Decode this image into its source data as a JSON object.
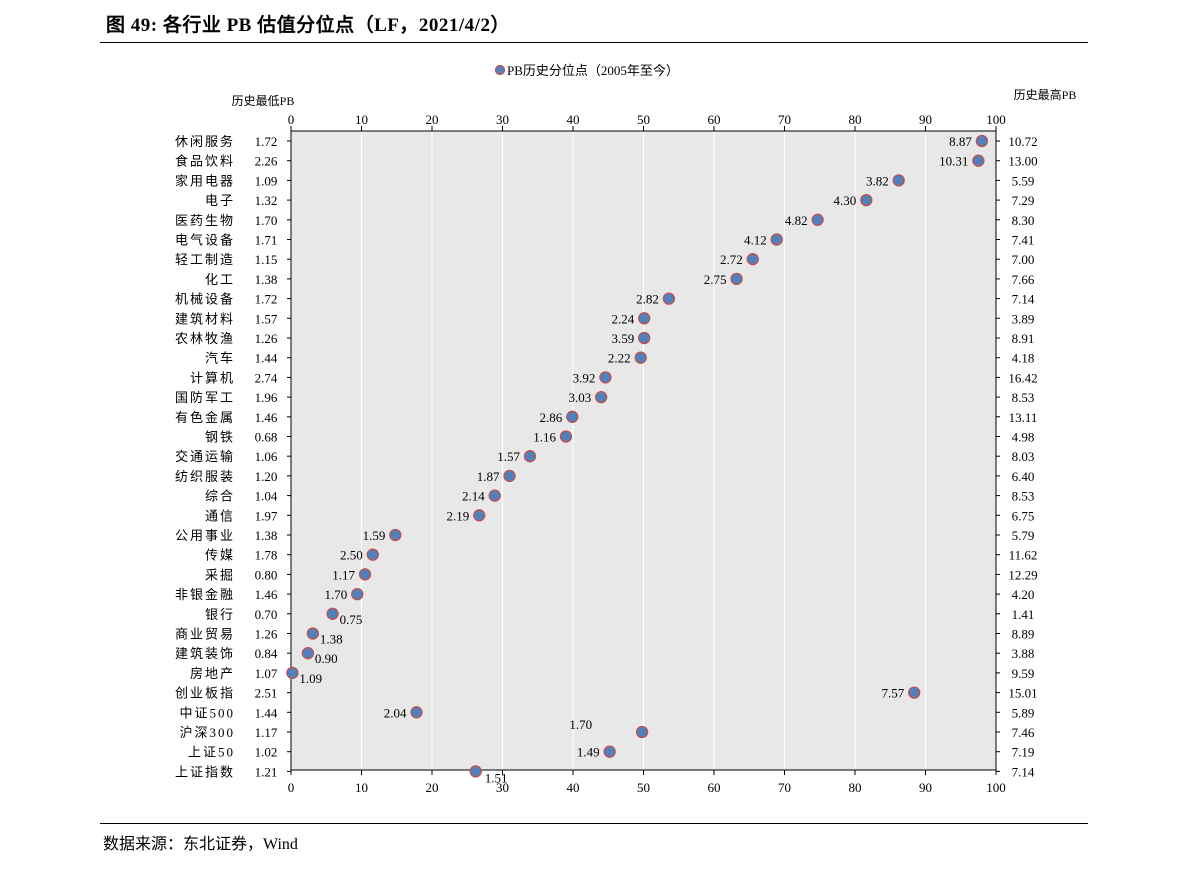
{
  "figure": {
    "title": "图 49: 各行业 PB 估值分位点（LF，2021/4/2）",
    "source": "数据来源：东北证券，Wind"
  },
  "colors": {
    "plot_bg": "#e8e8e8",
    "marker_fill": "#4f81bd",
    "marker_stroke": "#c0504d",
    "axis": "#000000"
  },
  "chart_data": {
    "type": "scatter",
    "legend": {
      "label": "PB历史分位点（2005年至今）",
      "position": "top"
    },
    "left_header": "历史最低PB",
    "right_header": "历史最高PB",
    "xlim": [
      0,
      100
    ],
    "xticks": [
      0,
      10,
      20,
      30,
      40,
      50,
      60,
      70,
      80,
      90,
      100
    ],
    "grid": {
      "vertical": true,
      "horizontal": false
    },
    "rows": [
      {
        "name": "休闲服务",
        "min_pb": "1.72",
        "max_pb": "10.72",
        "percentile": 98.0,
        "current_pb": "8.87"
      },
      {
        "name": "食品饮料",
        "min_pb": "2.26",
        "max_pb": "13.00",
        "percentile": 97.5,
        "current_pb": "10.31"
      },
      {
        "name": "家用电器",
        "min_pb": "1.09",
        "max_pb": "5.59",
        "percentile": 86.2,
        "current_pb": "3.82"
      },
      {
        "name": "电子",
        "min_pb": "1.32",
        "max_pb": "7.29",
        "percentile": 81.6,
        "current_pb": "4.30"
      },
      {
        "name": "医药生物",
        "min_pb": "1.70",
        "max_pb": "8.30",
        "percentile": 74.7,
        "current_pb": "4.82"
      },
      {
        "name": "电气设备",
        "min_pb": "1.71",
        "max_pb": "7.41",
        "percentile": 68.9,
        "current_pb": "4.12"
      },
      {
        "name": "轻工制造",
        "min_pb": "1.15",
        "max_pb": "7.00",
        "percentile": 65.5,
        "current_pb": "2.72"
      },
      {
        "name": "化工",
        "min_pb": "1.38",
        "max_pb": "7.66",
        "percentile": 63.2,
        "current_pb": "2.75"
      },
      {
        "name": "机械设备",
        "min_pb": "1.72",
        "max_pb": "7.14",
        "percentile": 53.6,
        "current_pb": "2.82"
      },
      {
        "name": "建筑材料",
        "min_pb": "1.57",
        "max_pb": "3.89",
        "percentile": 50.1,
        "current_pb": "2.24"
      },
      {
        "name": "农林牧渔",
        "min_pb": "1.26",
        "max_pb": "8.91",
        "percentile": 50.1,
        "current_pb": "3.59"
      },
      {
        "name": "汽车",
        "min_pb": "1.44",
        "max_pb": "4.18",
        "percentile": 49.6,
        "current_pb": "2.22"
      },
      {
        "name": "计算机",
        "min_pb": "2.74",
        "max_pb": "16.42",
        "percentile": 44.6,
        "current_pb": "3.92"
      },
      {
        "name": "国防军工",
        "min_pb": "1.96",
        "max_pb": "8.53",
        "percentile": 44.0,
        "current_pb": "3.03"
      },
      {
        "name": "有色金属",
        "min_pb": "1.46",
        "max_pb": "13.11",
        "percentile": 39.9,
        "current_pb": "2.86"
      },
      {
        "name": "钢铁",
        "min_pb": "0.68",
        "max_pb": "4.98",
        "percentile": 39.0,
        "current_pb": "1.16"
      },
      {
        "name": "交通运输",
        "min_pb": "1.06",
        "max_pb": "8.03",
        "percentile": 33.9,
        "current_pb": "1.57"
      },
      {
        "name": "纺织服装",
        "min_pb": "1.20",
        "max_pb": "6.40",
        "percentile": 31.0,
        "current_pb": "1.87"
      },
      {
        "name": "综合",
        "min_pb": "1.04",
        "max_pb": "8.53",
        "percentile": 28.9,
        "current_pb": "2.14"
      },
      {
        "name": "通信",
        "min_pb": "1.97",
        "max_pb": "6.75",
        "percentile": 26.7,
        "current_pb": "2.19"
      },
      {
        "name": "公用事业",
        "min_pb": "1.38",
        "max_pb": "5.79",
        "percentile": 14.8,
        "current_pb": "1.59"
      },
      {
        "name": "传媒",
        "min_pb": "1.78",
        "max_pb": "11.62",
        "percentile": 11.6,
        "current_pb": "2.50"
      },
      {
        "name": "采掘",
        "min_pb": "0.80",
        "max_pb": "12.29",
        "percentile": 10.5,
        "current_pb": "1.17"
      },
      {
        "name": "非银金融",
        "min_pb": "1.46",
        "max_pb": "4.20",
        "percentile": 9.4,
        "current_pb": "1.70"
      },
      {
        "name": "银行",
        "min_pb": "0.70",
        "max_pb": "1.41",
        "percentile": 5.9,
        "current_pb": "0.75"
      },
      {
        "name": "商业贸易",
        "min_pb": "1.26",
        "max_pb": "8.89",
        "percentile": 3.1,
        "current_pb": "1.38"
      },
      {
        "name": "建筑装饰",
        "min_pb": "0.84",
        "max_pb": "3.88",
        "percentile": 2.4,
        "current_pb": "0.90"
      },
      {
        "name": "房地产",
        "min_pb": "1.07",
        "max_pb": "9.59",
        "percentile": 0.2,
        "current_pb": "1.09"
      },
      {
        "name": "创业板指",
        "min_pb": "2.51",
        "max_pb": "15.01",
        "percentile": 88.4,
        "current_pb": "7.57"
      },
      {
        "name": "中证500",
        "min_pb": "1.44",
        "max_pb": "5.89",
        "percentile": 17.8,
        "current_pb": "2.04"
      },
      {
        "name": "沪深300",
        "min_pb": "1.17",
        "max_pb": "7.46",
        "percentile": 49.8,
        "current_pb": "1.70"
      },
      {
        "name": "上证50",
        "min_pb": "1.02",
        "max_pb": "7.19",
        "percentile": 45.2,
        "current_pb": "1.49"
      },
      {
        "name": "上证指数",
        "min_pb": "1.21",
        "max_pb": "7.14",
        "percentile": 26.2,
        "current_pb": "1.51"
      }
    ]
  }
}
